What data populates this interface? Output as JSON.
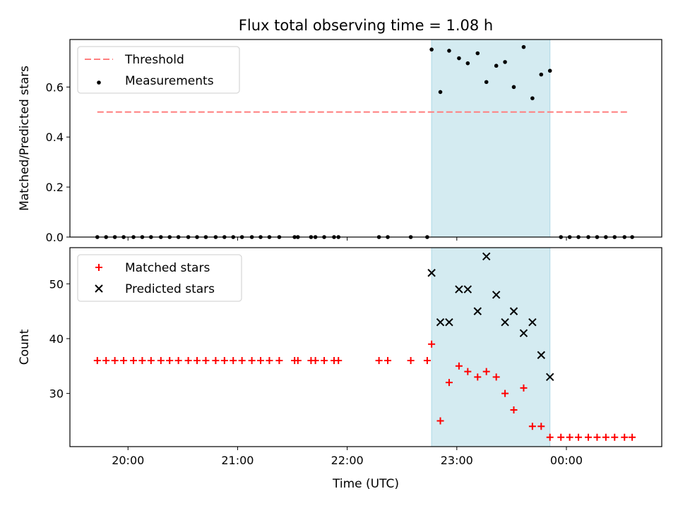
{
  "chart_data": {
    "title": "Flux total observing time = 1.08 h",
    "xlabel": "Time (UTC)",
    "x_unit": "hours UTC (values >= 24 are after midnight)",
    "xlim": [
      19.47,
      24.87
    ],
    "xticks": [
      20,
      21,
      22,
      23,
      24
    ],
    "xtick_labels": [
      "20:00",
      "21:00",
      "22:00",
      "23:00",
      "00:00"
    ],
    "highlight_span": [
      22.77,
      23.85
    ],
    "highlight_color": "#d4ebf1",
    "panels": [
      {
        "type": "scatter",
        "ylabel": "Matched/Predicted stars",
        "ylim": [
          0,
          0.79
        ],
        "yticks": [
          0.0,
          0.2,
          0.4,
          0.6
        ],
        "ytick_labels": [
          "0.0",
          "0.2",
          "0.4",
          "0.6"
        ],
        "legend_position": "upper-left",
        "threshold": {
          "name": "Threshold",
          "value": 0.5,
          "x_range": [
            19.72,
            24.57
          ],
          "color": "#ff7f7f",
          "style": "dashed"
        },
        "series": [
          {
            "name": "Measurements",
            "marker": "dot",
            "color": "#000000",
            "x": [
              19.72,
              19.8,
              19.88,
              19.96,
              20.05,
              20.13,
              20.21,
              20.3,
              20.38,
              20.46,
              20.55,
              20.63,
              20.71,
              20.8,
              20.88,
              20.96,
              21.04,
              21.13,
              21.21,
              21.29,
              21.38,
              21.52,
              21.55,
              21.67,
              21.71,
              21.79,
              21.88,
              21.92,
              22.29,
              22.37,
              22.58,
              22.73,
              22.77,
              22.85,
              22.93,
              23.02,
              23.1,
              23.19,
              23.27,
              23.36,
              23.44,
              23.52,
              23.61,
              23.69,
              23.77,
              23.85,
              23.95,
              24.03,
              24.11,
              24.2,
              24.28,
              24.36,
              24.44,
              24.53,
              24.6
            ],
            "y": [
              0,
              0,
              0,
              0,
              0,
              0,
              0,
              0,
              0,
              0,
              0,
              0,
              0,
              0,
              0,
              0,
              0,
              0,
              0,
              0,
              0,
              0,
              0,
              0,
              0,
              0,
              0,
              0,
              0,
              0,
              0,
              0,
              0.75,
              0.58,
              0.745,
              0.715,
              0.695,
              0.735,
              0.62,
              0.685,
              0.7,
              0.6,
              0.76,
              0.555,
              0.65,
              0.665,
              0,
              0,
              0,
              0,
              0,
              0,
              0,
              0,
              0
            ]
          }
        ]
      },
      {
        "type": "scatter",
        "ylabel": "Count",
        "ylim": [
          20.3,
          56.6
        ],
        "yticks": [
          30,
          40,
          50
        ],
        "ytick_labels": [
          "30",
          "40",
          "50"
        ],
        "legend_position": "upper-left",
        "series": [
          {
            "name": "Matched stars",
            "marker": "plus",
            "color": "#ff0000",
            "x": [
              19.72,
              19.8,
              19.88,
              19.96,
              20.05,
              20.13,
              20.21,
              20.3,
              20.38,
              20.46,
              20.55,
              20.63,
              20.71,
              20.8,
              20.88,
              20.96,
              21.04,
              21.13,
              21.21,
              21.29,
              21.38,
              21.52,
              21.55,
              21.67,
              21.71,
              21.79,
              21.88,
              21.92,
              22.29,
              22.37,
              22.58,
              22.73,
              22.77,
              22.85,
              22.93,
              23.02,
              23.1,
              23.19,
              23.27,
              23.36,
              23.44,
              23.52,
              23.61,
              23.69,
              23.77,
              23.85,
              23.95,
              24.03,
              24.11,
              24.2,
              24.28,
              24.36,
              24.44,
              24.53,
              24.6
            ],
            "y": [
              36,
              36,
              36,
              36,
              36,
              36,
              36,
              36,
              36,
              36,
              36,
              36,
              36,
              36,
              36,
              36,
              36,
              36,
              36,
              36,
              36,
              36,
              36,
              36,
              36,
              36,
              36,
              36,
              36,
              36,
              36,
              36,
              39,
              25,
              32,
              35,
              34,
              33,
              34,
              33,
              30,
              27,
              31,
              24,
              24,
              22,
              22,
              22,
              22,
              22,
              22,
              22,
              22,
              22,
              22
            ]
          },
          {
            "name": "Predicted stars",
            "marker": "x",
            "color": "#000000",
            "x": [
              22.77,
              22.85,
              22.93,
              23.02,
              23.1,
              23.19,
              23.27,
              23.36,
              23.44,
              23.52,
              23.61,
              23.69,
              23.77,
              23.85
            ],
            "y": [
              52,
              43,
              43,
              49,
              49,
              45,
              55,
              48,
              43,
              45,
              41,
              43,
              37,
              33
            ]
          }
        ]
      }
    ]
  }
}
